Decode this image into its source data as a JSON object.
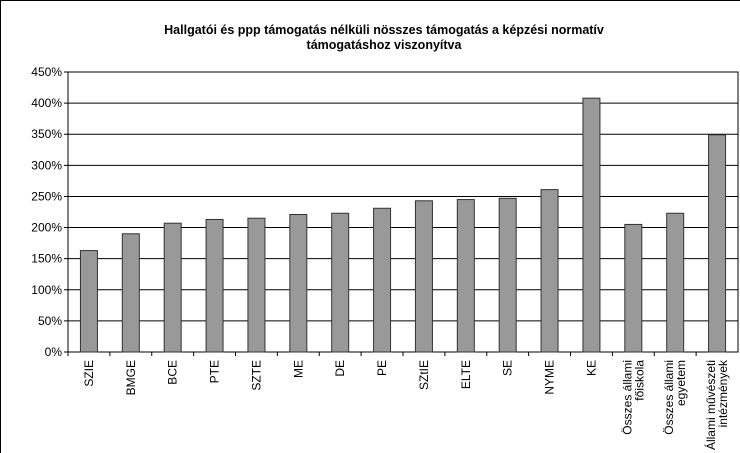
{
  "chart_data": {
    "type": "bar",
    "title": "Hallgatói és ppp támogatás nélküli nösszes támogatás a képzési normatív\ntámogatáshoz viszonyítva",
    "categories": [
      "SZIE",
      "BMGE",
      "BCE",
      "PTE",
      "SZTE",
      "ME",
      "DE",
      "PE",
      "SZtIE",
      "ELTE",
      "SE",
      "NYME",
      "KE",
      "Összes állami\nfőiskola",
      "Összes állami\negyetem",
      "Állami művészeti\nintézmények"
    ],
    "values": [
      163,
      190,
      207,
      213,
      215,
      221,
      223,
      231,
      243,
      245,
      247,
      261,
      408,
      205,
      223,
      349
    ],
    "color": "#999999",
    "ylim": [
      0,
      450
    ],
    "yticks": [
      {
        "value": 0,
        "label": "0%"
      },
      {
        "value": 50,
        "label": "50%"
      },
      {
        "value": 100,
        "label": "100%"
      },
      {
        "value": 150,
        "label": "150%"
      },
      {
        "value": 200,
        "label": "200%"
      },
      {
        "value": 250,
        "label": "250%"
      },
      {
        "value": 300,
        "label": "300%"
      },
      {
        "value": 350,
        "label": "350%"
      },
      {
        "value": 400,
        "label": "400%"
      },
      {
        "value": 450,
        "label": "450%"
      }
    ],
    "grid": true
  }
}
